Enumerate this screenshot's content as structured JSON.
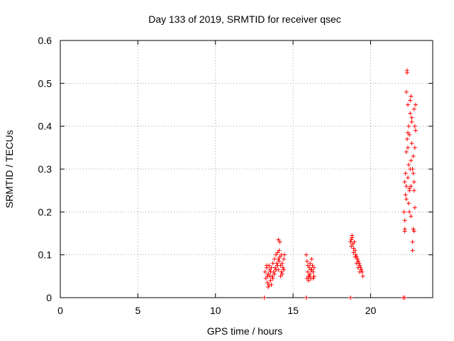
{
  "chart_data": {
    "type": "scatter",
    "title": "Day 133 of 2019, SRMTID for receiver qsec",
    "xlabel": "GPS time / hours",
    "ylabel": "SRMTID / TECUs",
    "xlim": [
      0,
      24
    ],
    "ylim": [
      0,
      0.6
    ],
    "xticks": [
      0,
      5,
      10,
      15,
      20
    ],
    "yticks": [
      0,
      0.1,
      0.2,
      0.3,
      0.4,
      0.5,
      0.6
    ],
    "x_tick_labels": [
      "0",
      "5",
      "10",
      "15",
      "20"
    ],
    "y_tick_labels": [
      "0",
      "0.1",
      "0.2",
      "0.3",
      "0.4",
      "0.5",
      "0.6"
    ],
    "grid": true,
    "marker": "plus",
    "color": "#ff0000",
    "points": [
      [
        13.15,
        0
      ],
      [
        15.85,
        0
      ],
      [
        18.7,
        0
      ],
      [
        22.1,
        0
      ],
      [
        22.2,
        0
      ],
      [
        13.2,
        0.06
      ],
      [
        13.25,
        0.045
      ],
      [
        13.3,
        0.07
      ],
      [
        13.35,
        0.035
      ],
      [
        13.4,
        0.055
      ],
      [
        13.45,
        0.03
      ],
      [
        13.5,
        0.065
      ],
      [
        13.55,
        0.04
      ],
      [
        13.3,
        0.075
      ],
      [
        13.4,
        0.025
      ],
      [
        13.5,
        0.05
      ],
      [
        13.55,
        0.06
      ],
      [
        13.6,
        0.07
      ],
      [
        13.65,
        0.05
      ],
      [
        13.7,
        0.08
      ],
      [
        13.75,
        0.06
      ],
      [
        13.8,
        0.09
      ],
      [
        13.85,
        0.07
      ],
      [
        13.9,
        0.1
      ],
      [
        13.95,
        0.08
      ],
      [
        13.7,
        0.045
      ],
      [
        13.8,
        0.055
      ],
      [
        13.6,
        0.03
      ],
      [
        13.45,
        0.075
      ],
      [
        13.35,
        0.05
      ],
      [
        14.0,
        0.105
      ],
      [
        14.05,
        0.09
      ],
      [
        14.1,
        0.11
      ],
      [
        14.0,
        0.075
      ],
      [
        14.05,
        0.065
      ],
      [
        14.1,
        0.085
      ],
      [
        14.15,
        0.095
      ],
      [
        14.2,
        0.075
      ],
      [
        14.25,
        0.06
      ],
      [
        14.3,
        0.08
      ],
      [
        14.35,
        0.07
      ],
      [
        14.4,
        0.09
      ],
      [
        14.45,
        0.1
      ],
      [
        14.15,
        0.13
      ],
      [
        14.2,
        0.05
      ],
      [
        14.3,
        0.055
      ],
      [
        14.4,
        0.065
      ],
      [
        14.05,
        0.135
      ],
      [
        13.9,
        0.065
      ],
      [
        14.25,
        0.1
      ],
      [
        15.85,
        0.1
      ],
      [
        15.9,
        0.085
      ],
      [
        15.95,
        0.06
      ],
      [
        16.0,
        0.05
      ],
      [
        16.05,
        0.07
      ],
      [
        16.1,
        0.055
      ],
      [
        16.15,
        0.045
      ],
      [
        16.2,
        0.065
      ],
      [
        16.25,
        0.075
      ],
      [
        16.3,
        0.06
      ],
      [
        16.35,
        0.05
      ],
      [
        15.9,
        0.045
      ],
      [
        16.0,
        0.04
      ],
      [
        16.1,
        0.08
      ],
      [
        16.2,
        0.09
      ],
      [
        16.3,
        0.045
      ],
      [
        16.35,
        0.07
      ],
      [
        16.15,
        0.065
      ],
      [
        15.95,
        0.075
      ],
      [
        16.05,
        0.05
      ],
      [
        18.7,
        0.13
      ],
      [
        18.75,
        0.12
      ],
      [
        18.8,
        0.14
      ],
      [
        18.85,
        0.125
      ],
      [
        18.9,
        0.115
      ],
      [
        18.95,
        0.13
      ],
      [
        19.0,
        0.11
      ],
      [
        19.05,
        0.1
      ],
      [
        19.1,
        0.095
      ],
      [
        19.15,
        0.09
      ],
      [
        19.2,
        0.085
      ],
      [
        19.25,
        0.08
      ],
      [
        19.3,
        0.075
      ],
      [
        19.35,
        0.07
      ],
      [
        19.4,
        0.065
      ],
      [
        19.45,
        0.06
      ],
      [
        19.5,
        0.05
      ],
      [
        18.8,
        0.145
      ],
      [
        18.9,
        0.105
      ],
      [
        19.0,
        0.095
      ],
      [
        19.1,
        0.08
      ],
      [
        19.2,
        0.07
      ],
      [
        19.3,
        0.06
      ],
      [
        18.75,
        0.135
      ],
      [
        22.15,
        0.2
      ],
      [
        22.2,
        0.16
      ],
      [
        22.2,
        0.27
      ],
      [
        22.25,
        0.29
      ],
      [
        22.3,
        0.23
      ],
      [
        22.3,
        0.48
      ],
      [
        22.35,
        0.53
      ],
      [
        22.35,
        0.525
      ],
      [
        22.4,
        0.45
      ],
      [
        22.4,
        0.35
      ],
      [
        22.45,
        0.4
      ],
      [
        22.45,
        0.31
      ],
      [
        22.5,
        0.38
      ],
      [
        22.5,
        0.25
      ],
      [
        22.55,
        0.43
      ],
      [
        22.55,
        0.3
      ],
      [
        22.6,
        0.26
      ],
      [
        22.6,
        0.19
      ],
      [
        22.65,
        0.36
      ],
      [
        22.65,
        0.41
      ],
      [
        22.7,
        0.11
      ],
      [
        22.7,
        0.13
      ],
      [
        22.75,
        0.16
      ],
      [
        22.75,
        0.33
      ],
      [
        22.8,
        0.44
      ],
      [
        22.8,
        0.27
      ],
      [
        22.85,
        0.35
      ],
      [
        22.85,
        0.21
      ],
      [
        22.9,
        0.45
      ],
      [
        22.9,
        0.39
      ],
      [
        22.2,
        0.18
      ],
      [
        22.25,
        0.24
      ],
      [
        22.3,
        0.34
      ],
      [
        22.4,
        0.28
      ],
      [
        22.5,
        0.2
      ],
      [
        22.6,
        0.32
      ],
      [
        22.7,
        0.3
      ],
      [
        22.8,
        0.25
      ],
      [
        22.45,
        0.22
      ],
      [
        22.35,
        0.37
      ],
      [
        22.55,
        0.46
      ],
      [
        22.65,
        0.42
      ],
      [
        22.75,
        0.29
      ],
      [
        22.85,
        0.4
      ],
      [
        22.2,
        0.155
      ],
      [
        22.3,
        0.26
      ],
      [
        22.5,
        0.255
      ],
      [
        22.6,
        0.47
      ],
      [
        22.4,
        0.385
      ],
      [
        22.8,
        0.155
      ]
    ]
  }
}
